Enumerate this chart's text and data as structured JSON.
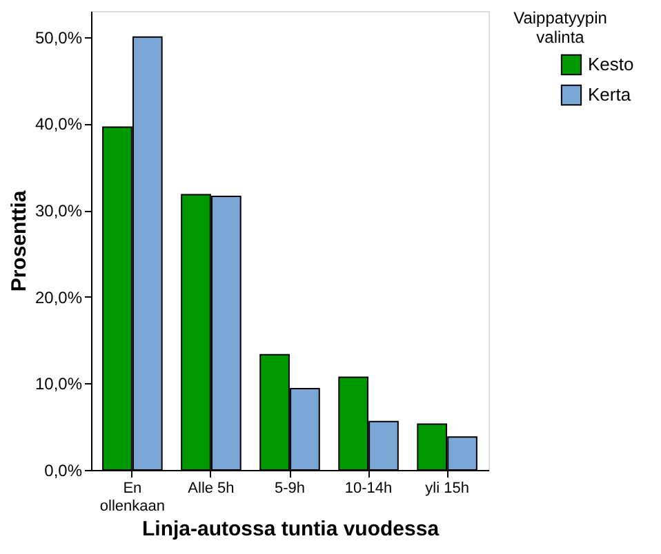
{
  "chart_data": {
    "type": "bar",
    "xlabel": "Linja-autossa tuntia vuodessa",
    "ylabel": "Prosenttia",
    "legend_title": "Vaippatyypin valinta",
    "categories": [
      "En ollenkaan",
      "Alle 5h",
      "5-9h",
      "10-14h",
      "yli 15h"
    ],
    "series": [
      {
        "name": "Kesto",
        "color": "#009900",
        "values": [
          39.6,
          31.8,
          13.3,
          10.7,
          5.3
        ]
      },
      {
        "name": "Kerta",
        "color": "#7ba7d6",
        "values": [
          50.0,
          31.6,
          9.4,
          5.6,
          3.8
        ]
      }
    ],
    "ylim": [
      0,
      53
    ],
    "yticks": [
      {
        "value": 0,
        "label": "0,0%"
      },
      {
        "value": 10,
        "label": "10,0%"
      },
      {
        "value": 20,
        "label": "20,0%"
      },
      {
        "value": 30,
        "label": "30,0%"
      },
      {
        "value": 40,
        "label": "40,0%"
      },
      {
        "value": 50,
        "label": "50,0%"
      }
    ],
    "grid": false,
    "legend": "top right"
  }
}
